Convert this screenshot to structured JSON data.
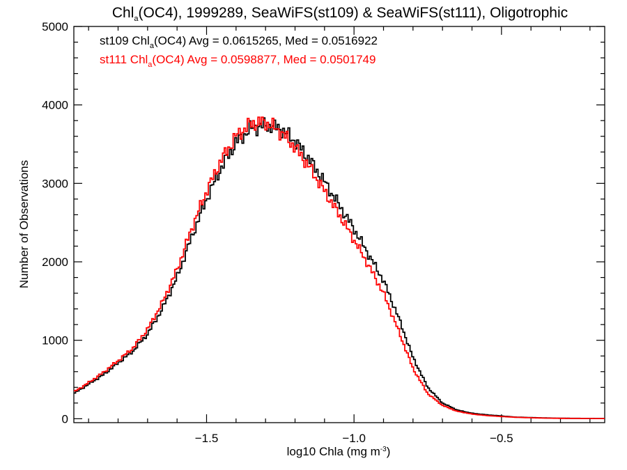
{
  "chart_data": {
    "type": "line",
    "title": {
      "prefix": "Chl",
      "sub": "a",
      "rest": "(OC4), 1999289, SeaWiFS(st109) & SeaWiFS(st111), Oligotrophic"
    },
    "xlabel": {
      "main": "log10 Chla (mg m",
      "sup": "-3",
      "end": ")"
    },
    "ylabel": "Number of Observations",
    "xlim": [
      -1.95,
      -0.15
    ],
    "ylim": [
      -50,
      5000
    ],
    "xticks": [
      -1.5,
      -1.0,
      -0.5
    ],
    "xtick_labels": [
      "−1.5",
      "−1.0",
      "−0.5"
    ],
    "yticks": [
      0,
      1000,
      2000,
      3000,
      4000,
      5000
    ],
    "ytick_labels": [
      "0",
      "1000",
      "2000",
      "3000",
      "4000",
      "5000"
    ],
    "grid": false,
    "legend_placement": "top-left",
    "series": [
      {
        "name": "st109",
        "color": "#000000",
        "legend": {
          "pre": "st109 Chl",
          "sub": "a",
          "post": "(OC4) Avg = 0.0615265, Med = 0.0516922"
        },
        "x": [
          -1.95,
          -1.9,
          -1.85,
          -1.8,
          -1.75,
          -1.7,
          -1.65,
          -1.6,
          -1.55,
          -1.5,
          -1.45,
          -1.4,
          -1.35,
          -1.3,
          -1.25,
          -1.2,
          -1.15,
          -1.1,
          -1.05,
          -1.0,
          -0.95,
          -0.9,
          -0.85,
          -0.8,
          -0.75,
          -0.7,
          -0.65,
          -0.6,
          -0.55,
          -0.5,
          -0.45,
          -0.4,
          -0.35,
          -0.3,
          -0.25,
          -0.2,
          -0.15
        ],
        "y": [
          320,
          440,
          560,
          710,
          860,
          1080,
          1400,
          1800,
          2320,
          2800,
          3200,
          3520,
          3700,
          3740,
          3700,
          3540,
          3300,
          3020,
          2720,
          2420,
          2090,
          1760,
          1300,
          780,
          400,
          200,
          110,
          70,
          50,
          35,
          20,
          15,
          10,
          6,
          5,
          4,
          3
        ]
      },
      {
        "name": "st111",
        "color": "#ff0000",
        "legend": {
          "pre": "st111 Chl",
          "sub": "a",
          "post": "(OC4) Avg = 0.0598877, Med = 0.0501749"
        },
        "x": [
          -1.95,
          -1.9,
          -1.85,
          -1.8,
          -1.75,
          -1.7,
          -1.65,
          -1.6,
          -1.55,
          -1.5,
          -1.45,
          -1.4,
          -1.35,
          -1.3,
          -1.25,
          -1.2,
          -1.15,
          -1.1,
          -1.05,
          -1.0,
          -0.95,
          -0.9,
          -0.85,
          -0.8,
          -0.75,
          -0.7,
          -0.65,
          -0.6,
          -0.55,
          -0.5,
          -0.45,
          -0.4,
          -0.35,
          -0.3,
          -0.25,
          -0.2,
          -0.15
        ],
        "y": [
          340,
          460,
          590,
          740,
          900,
          1140,
          1480,
          1900,
          2430,
          2900,
          3300,
          3600,
          3760,
          3780,
          3660,
          3460,
          3200,
          2900,
          2600,
          2280,
          1950,
          1600,
          1130,
          640,
          320,
          170,
          95,
          60,
          40,
          28,
          18,
          12,
          8,
          5,
          4,
          3,
          2
        ]
      }
    ]
  }
}
